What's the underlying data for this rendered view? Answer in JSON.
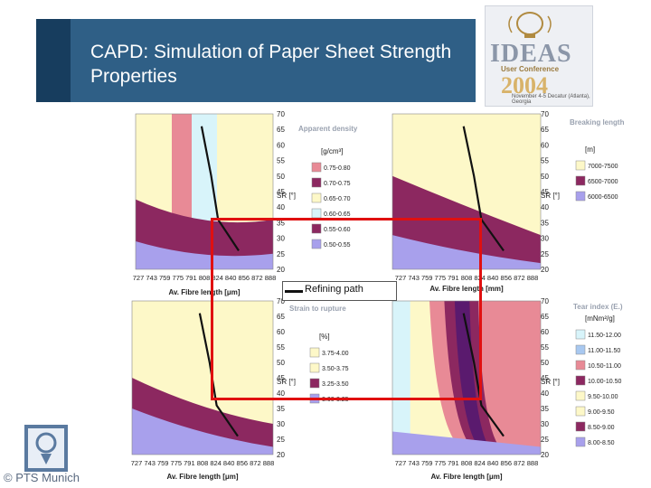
{
  "slide": {
    "title": "CAPD: Simulation of Paper Sheet Strength Properties",
    "footer": "© PTS Munich"
  },
  "logo": {
    "word": "IDEAS",
    "subtitle": "User Conference",
    "year": "2004",
    "date": "November 4-5 Decatur (Atlanta), Georgia"
  },
  "refining_path_label": "Refining path",
  "colors": {
    "title_bar": "#2f5f86",
    "path_rect": "#e01010"
  },
  "chart_data": [
    {
      "type": "area",
      "title": "Apparent density",
      "legend_unit": "[g/cm³]",
      "xlabel": "Av. Fibre length [μm]",
      "ylabel": "SR [°]",
      "x_ticks": [
        "727",
        "743",
        "759",
        "775",
        "791",
        "808",
        "824",
        "840",
        "856",
        "872",
        "888"
      ],
      "y_ticks": [
        "20",
        "25",
        "30",
        "35",
        "40",
        "45",
        "50",
        "55",
        "60",
        "65",
        "70"
      ],
      "legend": [
        "0.75-0.80",
        "0.70-0.75",
        "0.65-0.70",
        "0.60-0.65",
        "0.55-0.60",
        "0.50-0.55"
      ],
      "legend_colors": [
        "#e88a96",
        "#8c2860",
        "#fdf8c8",
        "#d8f4fa",
        "#8c2860",
        "#a8a0ec"
      ]
    },
    {
      "type": "area",
      "title": "Breaking length",
      "legend_unit": "[m]",
      "xlabel": "Av. Fibre length [mm]",
      "ylabel": "SR [°]",
      "x_ticks": [
        "727",
        "743",
        "759",
        "775",
        "791",
        "808",
        "824",
        "840",
        "856",
        "872",
        "888"
      ],
      "y_ticks": [
        "20",
        "25",
        "30",
        "35",
        "40",
        "45",
        "50",
        "55",
        "60",
        "65",
        "70"
      ],
      "legend": [
        "7000-7500",
        "6500-7000",
        "6000-6500"
      ],
      "legend_colors": [
        "#fdf8c8",
        "#8c2860",
        "#a8a0ec"
      ]
    },
    {
      "type": "area",
      "title": "Strain to rupture",
      "legend_unit": "[%]",
      "xlabel": "Av. Fibre length [μm]",
      "ylabel": "SR [°]",
      "x_ticks": [
        "727",
        "743",
        "759",
        "775",
        "791",
        "808",
        "824",
        "840",
        "856",
        "872",
        "888"
      ],
      "y_ticks": [
        "20",
        "25",
        "30",
        "35",
        "40",
        "45",
        "50",
        "55",
        "60",
        "65",
        "70"
      ],
      "legend": [
        "3.75-4.00",
        "3.50-3.75",
        "3.25-3.50",
        "3.00-3.25"
      ],
      "legend_colors": [
        "#fdf8c8",
        "#fdf8c8",
        "#8c2860",
        "#a8a0ec"
      ]
    },
    {
      "type": "area",
      "title": "Tear index (E.)",
      "legend_unit": "[mNm²/g]",
      "xlabel": "Av. Fibre length [μm]",
      "ylabel": "SR [°]",
      "x_ticks": [
        "727",
        "743",
        "759",
        "775",
        "791",
        "808",
        "824",
        "840",
        "856",
        "872",
        "888"
      ],
      "y_ticks": [
        "20",
        "25",
        "30",
        "35",
        "40",
        "45",
        "50",
        "55",
        "60",
        "65",
        "70"
      ],
      "legend": [
        "11.50-12.00",
        "11.00-11.50",
        "10.50-11.00",
        "10.00-10.50",
        "9.50-10.00",
        "9.00-9.50",
        "8.50-9.00",
        "8.00-8.50"
      ],
      "legend_colors": [
        "#d8f4fa",
        "#a8c8f0",
        "#e88a96",
        "#8c2860",
        "#fdf8c8",
        "#fdf8c8",
        "#8c2860",
        "#a8a0ec"
      ]
    }
  ]
}
